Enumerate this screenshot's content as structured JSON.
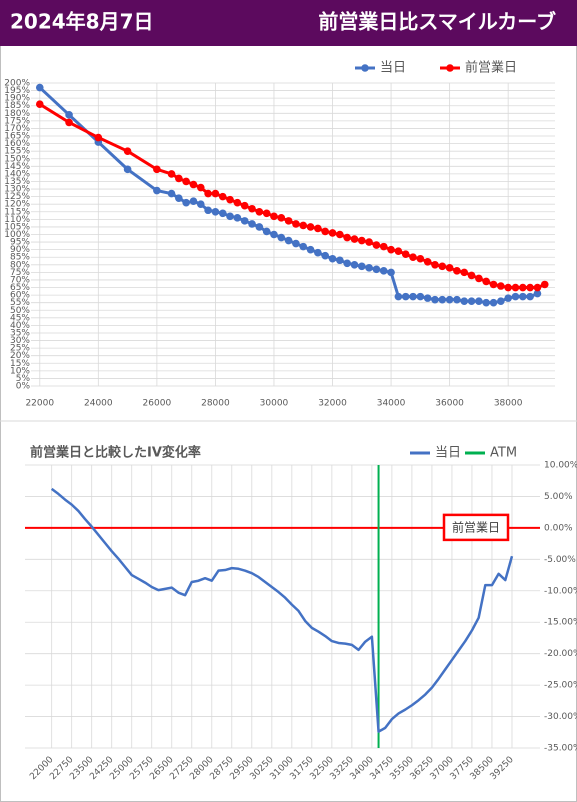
{
  "header": {
    "date": "2024年8月7日",
    "title": "前営業日比スマイルカーブ"
  },
  "chart_data": [
    {
      "type": "line",
      "x": [
        22000,
        23000,
        24000,
        25000,
        26000,
        26500,
        26750,
        27000,
        27250,
        27500,
        27750,
        28000,
        28250,
        28500,
        28750,
        29000,
        29250,
        29500,
        29750,
        30000,
        30250,
        30500,
        30750,
        31000,
        31250,
        31500,
        31750,
        32000,
        32250,
        32500,
        32750,
        33000,
        33250,
        33500,
        33750,
        34000,
        34250,
        34500,
        34750,
        35000,
        35250,
        35500,
        35750,
        36000,
        36250,
        36500,
        36750,
        37000,
        37250,
        37500,
        37750,
        38000,
        38250,
        38500,
        38750,
        39000,
        39250
      ],
      "series": [
        {
          "name": "当日",
          "color": "#4472c4",
          "values": [
            197,
            179,
            161,
            143,
            129,
            127,
            124,
            121,
            122,
            120,
            116,
            115,
            114,
            112,
            111,
            109,
            107,
            105,
            102,
            100,
            98,
            96,
            94,
            92,
            90,
            88,
            86,
            84,
            83,
            81,
            80,
            79,
            78,
            77,
            76,
            75,
            59,
            59,
            59,
            59,
            58,
            57,
            57,
            57,
            57,
            56,
            56,
            56,
            55,
            55,
            56,
            58,
            59,
            59,
            59,
            61,
            null
          ]
        },
        {
          "name": "前営業日",
          "color": "#ff0000",
          "values": [
            186,
            174,
            164,
            155,
            143,
            140,
            137,
            135,
            133,
            131,
            127,
            127,
            125,
            123,
            121,
            119,
            117,
            115,
            114,
            112,
            111,
            109,
            107,
            106,
            105,
            104,
            102,
            101,
            100,
            98,
            97,
            96,
            95,
            93,
            92,
            90,
            89,
            87,
            85,
            84,
            82,
            80,
            79,
            78,
            76,
            75,
            73,
            71,
            69,
            67,
            66,
            65,
            65,
            65,
            65,
            65,
            67
          ]
        }
      ],
      "xlim": [
        21700,
        39600
      ],
      "ylim": [
        0,
        200
      ],
      "xticks": [
        22000,
        24000,
        26000,
        28000,
        30000,
        32000,
        34000,
        36000,
        38000
      ],
      "yticks": [
        {
          "value": 0,
          "label": "0%"
        },
        {
          "value": 5,
          "label": "5%"
        },
        {
          "value": 10,
          "label": "10%"
        },
        {
          "value": 15,
          "label": "15%"
        },
        {
          "value": 20,
          "label": "20%"
        },
        {
          "value": 25,
          "label": "25%"
        },
        {
          "value": 30,
          "label": "30%"
        },
        {
          "value": 35,
          "label": "35%"
        },
        {
          "value": 40,
          "label": "40%"
        },
        {
          "value": 45,
          "label": "45%"
        },
        {
          "value": 50,
          "label": "50%"
        },
        {
          "value": 55,
          "label": "55%"
        },
        {
          "value": 60,
          "label": "60%"
        },
        {
          "value": 65,
          "label": "65%"
        },
        {
          "value": 70,
          "label": "70%"
        },
        {
          "value": 75,
          "label": "75%"
        },
        {
          "value": 80,
          "label": "80%"
        },
        {
          "value": 85,
          "label": "85%"
        },
        {
          "value": 90,
          "label": "90%"
        },
        {
          "value": 95,
          "label": "95%"
        },
        {
          "value": 100,
          "label": "100%"
        },
        {
          "value": 105,
          "label": "105%"
        },
        {
          "value": 110,
          "label": "110%"
        },
        {
          "value": 115,
          "label": "115%"
        },
        {
          "value": 120,
          "label": "120%"
        },
        {
          "value": 125,
          "label": "125%"
        },
        {
          "value": 130,
          "label": "130%"
        },
        {
          "value": 135,
          "label": "135%"
        },
        {
          "value": 140,
          "label": "140%"
        },
        {
          "value": 145,
          "label": "145%"
        },
        {
          "value": 150,
          "label": "150%"
        },
        {
          "value": 155,
          "label": "155%"
        },
        {
          "value": 160,
          "label": "160%"
        },
        {
          "value": 165,
          "label": "165%"
        },
        {
          "value": 170,
          "label": "170%"
        },
        {
          "value": 175,
          "label": "175%"
        },
        {
          "value": 180,
          "label": "180%"
        },
        {
          "value": 185,
          "label": "185%"
        },
        {
          "value": 190,
          "label": "190%"
        },
        {
          "value": 195,
          "label": "195%"
        },
        {
          "value": 200,
          "label": "200%"
        }
      ],
      "markers": true,
      "grid": true,
      "legend": "top-right"
    },
    {
      "type": "line",
      "title": "前営業日と比較したIV変化率",
      "x": [
        22000,
        22250,
        22500,
        22750,
        23000,
        23250,
        23500,
        23750,
        24000,
        24250,
        24500,
        24750,
        25000,
        25250,
        25500,
        25750,
        26000,
        26250,
        26500,
        26750,
        27000,
        27250,
        27500,
        27750,
        28000,
        28250,
        28500,
        28750,
        29000,
        29250,
        29500,
        29750,
        30000,
        30250,
        30500,
        30750,
        31000,
        31250,
        31500,
        31750,
        32000,
        32250,
        32500,
        32750,
        33000,
        33250,
        33500,
        33750,
        34000,
        34250,
        34500,
        34750,
        35000,
        35250,
        35500,
        35750,
        36000,
        36250,
        36500,
        36750,
        37000,
        37250,
        37500,
        37750,
        38000,
        38250,
        38500,
        38750,
        39000,
        39250
      ],
      "series": [
        {
          "name": "当日",
          "color": "#4472c4",
          "values": [
            6.2,
            5.4,
            4.5,
            3.7,
            2.7,
            1.4,
            0.2,
            -1.1,
            -2.4,
            -3.7,
            -4.9,
            -6.2,
            -7.5,
            -8.1,
            -8.7,
            -9.4,
            -9.9,
            -9.7,
            -9.5,
            -10.3,
            -10.7,
            -8.6,
            -8.4,
            -8.0,
            -8.4,
            -6.8,
            -6.7,
            -6.4,
            -6.5,
            -6.8,
            -7.2,
            -7.8,
            -8.6,
            -9.4,
            -10.2,
            -11.1,
            -12.2,
            -13.2,
            -14.8,
            -15.9,
            -16.5,
            -17.2,
            -18.0,
            -18.3,
            -18.4,
            -18.6,
            -19.4,
            -18.1,
            -17.3,
            -32.4,
            -31.8,
            -30.4,
            -29.5,
            -28.9,
            -28.2,
            -27.4,
            -26.5,
            -25.4,
            -24.0,
            -22.5,
            -21.0,
            -19.5,
            -18.0,
            -16.3,
            -14.3,
            -9.1,
            -9.1,
            -7.3,
            -8.3,
            -4.5
          ]
        }
      ],
      "vlines": [
        {
          "name": "ATM",
          "color": "#00b050",
          "x": 34250
        }
      ],
      "hlines": [
        {
          "label": "前営業日",
          "color": "#ff0000",
          "value": 0
        }
      ],
      "xlim": [
        21000,
        40300
      ],
      "ylim": [
        -35,
        10
      ],
      "xticks": [
        22000,
        22750,
        23500,
        24250,
        25000,
        25750,
        26500,
        27250,
        28000,
        28750,
        29500,
        30250,
        31000,
        31750,
        32500,
        33250,
        34000,
        34750,
        35500,
        36250,
        37000,
        37750,
        38500,
        39250
      ],
      "yticks": [
        {
          "value": 10,
          "label": "10.00%"
        },
        {
          "value": 5,
          "label": "5.00%"
        },
        {
          "value": 0,
          "label": "0.00%"
        },
        {
          "value": -5,
          "label": "-5.00%"
        },
        {
          "value": -10,
          "label": "-10.00%"
        },
        {
          "value": -15,
          "label": "-15.00%"
        },
        {
          "value": -20,
          "label": "-20.00%"
        },
        {
          "value": -25,
          "label": "-25.00%"
        },
        {
          "value": -30,
          "label": "-30.00%"
        },
        {
          "value": -35,
          "label": "-35.00%"
        }
      ],
      "markers": false,
      "grid": true,
      "legend": "top-right"
    }
  ]
}
